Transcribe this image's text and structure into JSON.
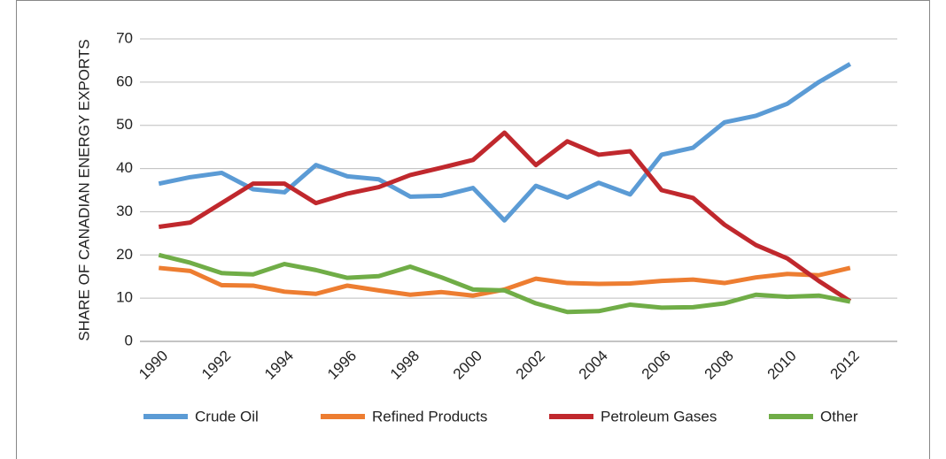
{
  "chart_data": {
    "type": "line",
    "y_label": "SHARE OF CANADIAN ENERGY EXPORTS",
    "x": [
      1990,
      1991,
      1992,
      1993,
      1994,
      1995,
      1996,
      1997,
      1998,
      1999,
      2000,
      2001,
      2002,
      2003,
      2004,
      2005,
      2006,
      2007,
      2008,
      2009,
      2010,
      2011,
      2012
    ],
    "xlim": [
      1989.4,
      2013.5
    ],
    "xticks": [
      1990,
      1992,
      1994,
      1996,
      1998,
      2000,
      2002,
      2004,
      2006,
      2008,
      2010,
      2012
    ],
    "ylim": [
      0,
      70
    ],
    "yticks": [
      0,
      10,
      20,
      30,
      40,
      50,
      60,
      70
    ],
    "grid": true,
    "legend": "bottom",
    "series": [
      {
        "name": "Crude Oil",
        "color": "#5b9bd5",
        "values": [
          36.5,
          38,
          39,
          35.2,
          34.5,
          40.8,
          38.2,
          37.5,
          33.5,
          33.7,
          35.5,
          28,
          36,
          33.3,
          36.7,
          34,
          43.2,
          44.8,
          50.7,
          52.2,
          55,
          60,
          64.2
        ]
      },
      {
        "name": "Refined Products",
        "color": "#ed7d31",
        "values": [
          17,
          16.3,
          13,
          12.9,
          11.5,
          11,
          12.9,
          11.8,
          10.8,
          11.4,
          10.6,
          12,
          14.5,
          13.5,
          13.3,
          13.4,
          14,
          14.3,
          13.5,
          14.8,
          15.6,
          15.3,
          17
        ]
      },
      {
        "name": "Petroleum Gases",
        "color": "#c0282d",
        "values": [
          26.5,
          27.5,
          32,
          36.5,
          36.5,
          32,
          34.2,
          35.7,
          38.5,
          40.2,
          42,
          48.3,
          40.8,
          46.3,
          43.2,
          44,
          35,
          33.2,
          27,
          22.3,
          19.2,
          14,
          9.3
        ]
      },
      {
        "name": "Other",
        "color": "#70ad47",
        "values": [
          20,
          18.2,
          15.8,
          15.5,
          17.9,
          16.5,
          14.7,
          15.1,
          17.3,
          14.8,
          12,
          11.8,
          8.8,
          6.8,
          7,
          8.5,
          7.8,
          7.9,
          8.8,
          10.8,
          10.3,
          10.6,
          9.2
        ]
      }
    ]
  }
}
